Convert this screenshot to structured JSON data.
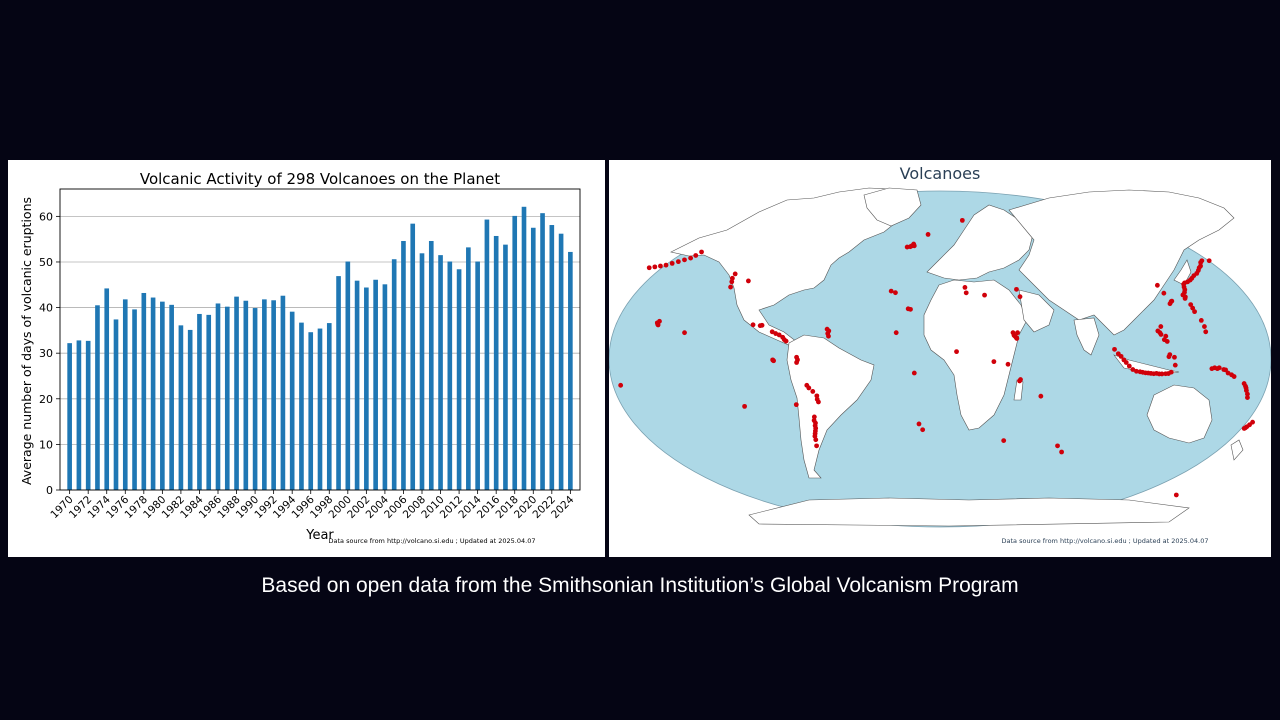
{
  "caption": "Based on open data from the Smithsonian Institution’s Global Volcanism Program",
  "chart_data": [
    {
      "type": "bar",
      "title": "Volcanic Activity of 298 Volcanoes on the Planet",
      "xlabel": "Year",
      "ylabel": "Average number of days of volcanic eruptions",
      "ylim": [
        0,
        66
      ],
      "yticks": [
        0,
        10,
        20,
        30,
        40,
        50,
        60
      ],
      "grid": "horizontal",
      "color": "#1f77b4",
      "categories": [
        "1970",
        "1971",
        "1972",
        "1973",
        "1974",
        "1975",
        "1976",
        "1977",
        "1978",
        "1979",
        "1980",
        "1981",
        "1982",
        "1983",
        "1984",
        "1985",
        "1986",
        "1987",
        "1988",
        "1989",
        "1990",
        "1991",
        "1992",
        "1993",
        "1994",
        "1995",
        "1996",
        "1997",
        "1998",
        "1999",
        "2000",
        "2001",
        "2002",
        "2003",
        "2004",
        "2005",
        "2006",
        "2007",
        "2008",
        "2009",
        "2010",
        "2011",
        "2012",
        "2013",
        "2014",
        "2015",
        "2016",
        "2017",
        "2018",
        "2019",
        "2020",
        "2021",
        "2022",
        "2023",
        "2024"
      ],
      "xtick_labels": [
        "1970",
        "1972",
        "1974",
        "1976",
        "1978",
        "1980",
        "1982",
        "1984",
        "1986",
        "1988",
        "1990",
        "1992",
        "1994",
        "1996",
        "1998",
        "2000",
        "2002",
        "2004",
        "2006",
        "2008",
        "2010",
        "2012",
        "2014",
        "2016",
        "2018",
        "2020",
        "2022",
        "2024"
      ],
      "values": [
        32.2,
        32.8,
        32.7,
        40.5,
        44.2,
        37.4,
        41.8,
        39.6,
        43.2,
        42.2,
        41.3,
        40.6,
        36.1,
        35.1,
        38.6,
        38.4,
        40.9,
        40.2,
        42.4,
        41.5,
        39.9,
        41.8,
        41.6,
        42.6,
        39.1,
        36.7,
        34.6,
        35.4,
        36.6,
        46.9,
        50.1,
        45.9,
        44.4,
        46.1,
        45.1,
        50.6,
        54.6,
        58.4,
        51.9,
        54.6,
        51.5,
        50.1,
        48.4,
        53.2,
        50.1,
        59.3,
        55.7,
        53.8,
        60.1,
        62.1,
        57.5,
        60.7,
        58.1,
        56.2,
        52.2
      ],
      "footnote": "Data source from http://volcano.si.edu ; Updated at 2025.04.07"
    },
    {
      "type": "map",
      "title": "Volcanoes",
      "projection": "Robinson",
      "ocean_color": "#add8e6",
      "land_color": "#ffffff",
      "marker_color": "#d0000a",
      "footnote": "Data source from http://volcano.si.edu ; Updated at 2025.04.07",
      "volcanoes": [
        [
          -175,
          52
        ],
        [
          -172,
          52.5
        ],
        [
          -169,
          53
        ],
        [
          -166,
          53.5
        ],
        [
          -163,
          54.5
        ],
        [
          -160,
          55.5
        ],
        [
          -157,
          56.5
        ],
        [
          -154,
          57.5
        ],
        [
          -152,
          59
        ],
        [
          -150,
          61
        ],
        [
          -122,
          46
        ],
        [
          -121.5,
          44
        ],
        [
          -121,
          41
        ],
        [
          -121.5,
          48.5
        ],
        [
          -112,
          44.5
        ],
        [
          -103,
          19.5
        ],
        [
          -99,
          19
        ],
        [
          -98,
          19.2
        ],
        [
          -92,
          15.5
        ],
        [
          -90,
          14.5
        ],
        [
          -88,
          13.7
        ],
        [
          -86,
          12.4
        ],
        [
          -85,
          11
        ],
        [
          -84,
          10.2
        ],
        [
          -61,
          16
        ],
        [
          -61.5,
          14.5
        ],
        [
          -61,
          13
        ],
        [
          -62,
          17
        ],
        [
          -78,
          1
        ],
        [
          -77.5,
          -0.5
        ],
        [
          -78,
          -2
        ],
        [
          -73,
          -15
        ],
        [
          -72,
          -16.5
        ],
        [
          -70,
          -18.5
        ],
        [
          -68,
          -21
        ],
        [
          -68,
          -23
        ],
        [
          -67.5,
          -24.5
        ],
        [
          -71,
          -33
        ],
        [
          -71.5,
          -35
        ],
        [
          -71,
          -36.5
        ],
        [
          -71.5,
          -38
        ],
        [
          -71.5,
          -39.5
        ],
        [
          -72,
          -41
        ],
        [
          -72.5,
          -42.5
        ],
        [
          -73,
          -44
        ],
        [
          -73,
          -46
        ],
        [
          -73.5,
          -49.5
        ],
        [
          -91,
          -0.5
        ],
        [
          -90.5,
          -1
        ],
        [
          -80,
          -26
        ],
        [
          -109,
          -27
        ],
        [
          -155.3,
          19.4
        ],
        [
          -155.6,
          19.8
        ],
        [
          -156,
          20.6
        ],
        [
          -155,
          21.5
        ],
        [
          -140,
          15
        ],
        [
          -19,
          64
        ],
        [
          -18,
          64.5
        ],
        [
          -17,
          65.5
        ],
        [
          -16.5,
          64.5
        ],
        [
          -21,
          63.8
        ],
        [
          -8,
          71
        ],
        [
          16,
          79
        ],
        [
          -28,
          38.7
        ],
        [
          -25.5,
          37.8
        ],
        [
          -17.8,
          28.6
        ],
        [
          -16.5,
          28.3
        ],
        [
          -24,
          15
        ],
        [
          -14,
          -8
        ],
        [
          -12,
          -37
        ],
        [
          -10,
          -40.3
        ],
        [
          15,
          37.7
        ],
        [
          14.4,
          40.8
        ],
        [
          25.4,
          36.4
        ],
        [
          44,
          39.7
        ],
        [
          45.5,
          35.5
        ],
        [
          40.5,
          13.5
        ],
        [
          41,
          13
        ],
        [
          41.5,
          12.5
        ],
        [
          41.8,
          12
        ],
        [
          42,
          11.7
        ],
        [
          40,
          15
        ],
        [
          42.5,
          15
        ],
        [
          9,
          4.2
        ],
        [
          29.3,
          -1.5
        ],
        [
          37,
          -3
        ],
        [
          44,
          -11.7
        ],
        [
          43.5,
          -12.5
        ],
        [
          55.7,
          -21.2
        ],
        [
          73.5,
          -53
        ],
        [
          70,
          -49.5
        ],
        [
          37.5,
          -46.5
        ],
        [
          95,
          5.5
        ],
        [
          97,
          3
        ],
        [
          98.5,
          1.5
        ],
        [
          100,
          -0.5
        ],
        [
          101.3,
          -2
        ],
        [
          103,
          -4
        ],
        [
          105,
          -6
        ],
        [
          107,
          -7
        ],
        [
          109,
          -7.3
        ],
        [
          110.5,
          -7.6
        ],
        [
          112,
          -7.9
        ],
        [
          113.5,
          -8
        ],
        [
          115,
          -8.2
        ],
        [
          116.5,
          -8.4
        ],
        [
          118,
          -8.2
        ],
        [
          119.5,
          -8.5
        ],
        [
          121,
          -8.5
        ],
        [
          123,
          -8.4
        ],
        [
          124.5,
          -8.3
        ],
        [
          126,
          -7.5
        ],
        [
          128,
          -3.5
        ],
        [
          127.5,
          1
        ],
        [
          125,
          2.5
        ],
        [
          124.5,
          1.3
        ],
        [
          124,
          10
        ],
        [
          123.5,
          13
        ],
        [
          122.5,
          11
        ],
        [
          120.5,
          15
        ],
        [
          121.5,
          18.5
        ],
        [
          119.5,
          16
        ],
        [
          121,
          14
        ],
        [
          129.5,
          31.5
        ],
        [
          130.5,
          32.7
        ],
        [
          131,
          33
        ],
        [
          139.5,
          35.4
        ],
        [
          139,
          34.5
        ],
        [
          138.5,
          36.5
        ],
        [
          140,
          38
        ],
        [
          140.8,
          39.5
        ],
        [
          141,
          41
        ],
        [
          141.5,
          42.6
        ],
        [
          142.5,
          43.4
        ],
        [
          144.5,
          44
        ],
        [
          146.5,
          45
        ],
        [
          148,
          46
        ],
        [
          150,
          47.5
        ],
        [
          152.5,
          48.8
        ],
        [
          154.5,
          50.5
        ],
        [
          156,
          52
        ],
        [
          157.5,
          53
        ],
        [
          159,
          55
        ],
        [
          160.5,
          56
        ],
        [
          165,
          56
        ],
        [
          126,
          42
        ],
        [
          128,
          37.5
        ],
        [
          141,
          31
        ],
        [
          141.5,
          29
        ],
        [
          142,
          27
        ],
        [
          144.5,
          22
        ],
        [
          145.5,
          18.5
        ],
        [
          145.7,
          15.5
        ],
        [
          148,
          -5.5
        ],
        [
          149.5,
          -5
        ],
        [
          151,
          -5.5
        ],
        [
          152,
          -5
        ],
        [
          154.5,
          -6
        ],
        [
          155.5,
          -6.2
        ],
        [
          157,
          -8
        ],
        [
          159,
          -9
        ],
        [
          160.5,
          -10
        ],
        [
          166.5,
          -14
        ],
        [
          167.5,
          -15.5
        ],
        [
          168,
          -16.5
        ],
        [
          168.5,
          -18
        ],
        [
          169.5,
          -20
        ],
        [
          170,
          -22
        ],
        [
          176,
          -38.6
        ],
        [
          175.5,
          -39.2
        ],
        [
          177,
          -37.5
        ],
        [
          178,
          -36
        ],
        [
          175,
          -39.6
        ],
        [
          -175,
          -15
        ],
        [
          167,
          -77.5
        ]
      ]
    }
  ]
}
